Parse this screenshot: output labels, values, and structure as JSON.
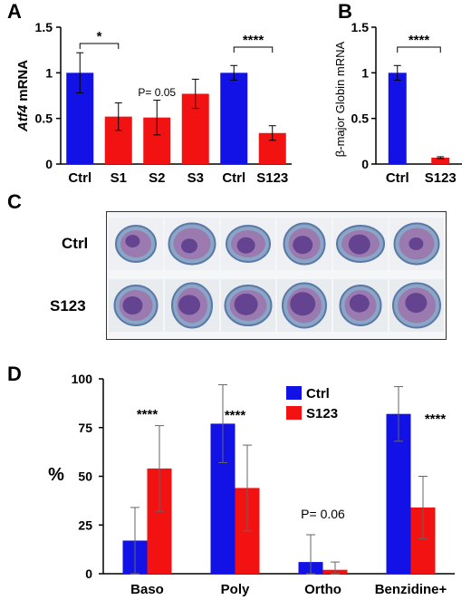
{
  "colors": {
    "ctrl": "#1212E6",
    "s123": "#F21212",
    "axis": "#000000"
  },
  "panels": {
    "a": "A",
    "b": "B",
    "c": "C",
    "d": "D"
  },
  "chart_data": [
    {
      "id": "A",
      "type": "bar",
      "ylabel_italic": "Atf4",
      "ylabel_rest": " mRNA",
      "categories": [
        "Ctrl",
        "S1",
        "S2",
        "S3",
        "Ctrl",
        "S123"
      ],
      "values": [
        1.0,
        0.52,
        0.51,
        0.77,
        1.0,
        0.34
      ],
      "errors": [
        0.22,
        0.15,
        0.19,
        0.16,
        0.08,
        0.08
      ],
      "bar_colors": [
        "ctrl",
        "s123",
        "s123",
        "s123",
        "ctrl",
        "s123"
      ],
      "ylim": [
        0,
        1.5
      ],
      "yticks": [
        "0",
        "0.5",
        "1",
        "1.5"
      ],
      "annotations": [
        {
          "text": "*",
          "from": 0,
          "to": 1
        },
        {
          "text": "****",
          "from": 4,
          "to": 5
        }
      ],
      "pvalue": {
        "text": "P= 0.05",
        "at": 2
      }
    },
    {
      "id": "B",
      "type": "bar",
      "ylabel": "β-major Globin mRNA",
      "categories": [
        "Ctrl",
        "S123"
      ],
      "values": [
        1.0,
        0.07
      ],
      "errors": [
        0.08,
        0.01
      ],
      "bar_colors": [
        "ctrl",
        "s123"
      ],
      "ylim": [
        0,
        1.5
      ],
      "yticks": [
        "0",
        "0.5",
        "1",
        "1.5"
      ],
      "annotations": [
        {
          "text": "****",
          "from": 0,
          "to": 1
        }
      ]
    },
    {
      "id": "D",
      "type": "bar",
      "ylabel": "%",
      "categories": [
        "Baso",
        "Poly",
        "Ortho",
        "Benzidine+"
      ],
      "series": [
        {
          "name": "Ctrl",
          "color": "ctrl",
          "values": [
            17,
            77,
            6,
            82
          ],
          "errors": [
            17,
            20,
            14,
            14
          ]
        },
        {
          "name": "S123",
          "color": "s123",
          "values": [
            54,
            44,
            2,
            34
          ],
          "errors": [
            22,
            22,
            4,
            16
          ]
        }
      ],
      "ylim": [
        0,
        100
      ],
      "yticks": [
        "0",
        "25",
        "50",
        "75",
        "100"
      ],
      "stars": [
        {
          "text": "****",
          "at": 0
        },
        {
          "text": "****",
          "at": 1
        },
        {
          "text": "****",
          "at": 3
        }
      ],
      "pvalue": {
        "text": "P= 0.06",
        "at": 2
      },
      "legend": "top-right"
    }
  ],
  "micrographs": {
    "rows": [
      {
        "label": "Ctrl",
        "count": 6
      },
      {
        "label": "S123",
        "count": 6
      }
    ]
  }
}
